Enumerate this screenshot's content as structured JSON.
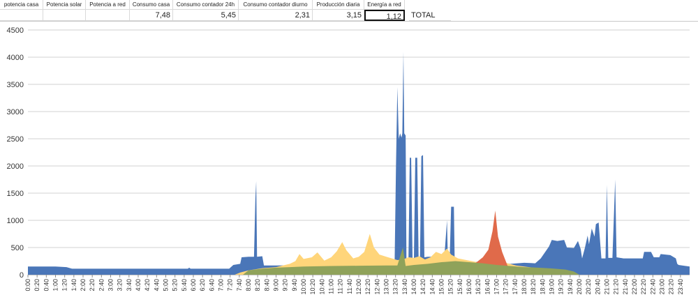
{
  "sheet": {
    "headers": [
      "potencia casa",
      "Potencia solar",
      "Potencia a red",
      "Consumo casa",
      "Consumo contador 24h",
      "Consumo contador diurno",
      "Producción diaria",
      "Energía a red"
    ],
    "values": [
      "",
      "",
      "",
      "7,48",
      "5,45",
      "2,31",
      "3,15",
      "1,12"
    ],
    "total_label": "TOTAL"
  },
  "colors": {
    "consumo": "#4a76b8",
    "solar": "#ffd57a",
    "red": "#e06a4a",
    "overlap": "#8fa25a"
  },
  "chart_data": {
    "type": "area",
    "ylim": [
      0,
      4500
    ],
    "yticks": [
      0,
      500,
      1000,
      1500,
      2000,
      2500,
      3000,
      3500,
      4000,
      4500
    ],
    "grid": true,
    "legend": "none",
    "xlabels": [
      "0:00",
      "0:20",
      "0:40",
      "1:00",
      "1:20",
      "1:40",
      "2:00",
      "2:20",
      "2:40",
      "3:00",
      "3:20",
      "3:40",
      "4:00",
      "4:20",
      "4:40",
      "5:00",
      "5:20",
      "5:40",
      "6:00",
      "6:20",
      "6:40",
      "7:00",
      "7:20",
      "7:40",
      "8:00",
      "8:20",
      "8:40",
      "9:00",
      "9:20",
      "9:40",
      "10:00",
      "10:20",
      "10:40",
      "11:00",
      "11:20",
      "11:40",
      "12:00",
      "12:20",
      "12:40",
      "13:00",
      "13:20",
      "13:40",
      "14:00",
      "14:20",
      "14:40",
      "15:00",
      "15:20",
      "15:40",
      "16:00",
      "16:20",
      "16:40",
      "17:00",
      "17:20",
      "17:40",
      "18:00",
      "18:20",
      "18:40",
      "19:00",
      "19:20",
      "19:40",
      "20:00",
      "20:20",
      "20:40",
      "21:00",
      "21:20",
      "21:40",
      "22:00",
      "22:20",
      "22:40",
      "23:00",
      "23:20",
      "23:40"
    ],
    "series": [
      {
        "key": "consumo",
        "points": [
          [
            0,
            150
          ],
          [
            1,
            150
          ],
          [
            1.4,
            140
          ],
          [
            1.6,
            110
          ],
          [
            5.8,
            110
          ],
          [
            5.85,
            130
          ],
          [
            5.9,
            110
          ],
          [
            7.3,
            110
          ],
          [
            7.45,
            180
          ],
          [
            7.7,
            200
          ],
          [
            7.75,
            320
          ],
          [
            8.0,
            330
          ],
          [
            8.2,
            330
          ],
          [
            8.25,
            1400
          ],
          [
            8.28,
            1720
          ],
          [
            8.31,
            330
          ],
          [
            8.5,
            340
          ],
          [
            8.56,
            170
          ],
          [
            9.0,
            170
          ],
          [
            12.0,
            180
          ],
          [
            13.0,
            180
          ],
          [
            13.3,
            200
          ],
          [
            13.35,
            2000
          ],
          [
            13.4,
            3450
          ],
          [
            13.45,
            2500
          ],
          [
            13.5,
            2600
          ],
          [
            13.55,
            2520
          ],
          [
            13.58,
            2600
          ],
          [
            13.62,
            4100
          ],
          [
            13.65,
            2600
          ],
          [
            13.7,
            2560
          ],
          [
            13.73,
            180
          ],
          [
            13.8,
            180
          ],
          [
            13.85,
            2150
          ],
          [
            13.9,
            2150
          ],
          [
            13.95,
            300
          ],
          [
            14.0,
            300
          ],
          [
            14.05,
            2150
          ],
          [
            14.12,
            2150
          ],
          [
            14.17,
            300
          ],
          [
            14.22,
            300
          ],
          [
            14.27,
            2180
          ],
          [
            14.33,
            2200
          ],
          [
            14.38,
            320
          ],
          [
            14.5,
            330
          ],
          [
            15.0,
            330
          ],
          [
            15.1,
            300
          ],
          [
            15.2,
            1000
          ],
          [
            15.23,
            300
          ],
          [
            15.3,
            330
          ],
          [
            15.35,
            1250
          ],
          [
            15.45,
            1250
          ],
          [
            15.48,
            200
          ],
          [
            15.8,
            250
          ],
          [
            16.0,
            220
          ],
          [
            16.5,
            250
          ],
          [
            17.0,
            230
          ],
          [
            17.5,
            200
          ],
          [
            18.0,
            220
          ],
          [
            18.4,
            210
          ],
          [
            18.6,
            300
          ],
          [
            18.9,
            520
          ],
          [
            19.0,
            640
          ],
          [
            19.2,
            620
          ],
          [
            19.45,
            640
          ],
          [
            19.55,
            500
          ],
          [
            19.8,
            490
          ],
          [
            19.95,
            620
          ],
          [
            20.05,
            470
          ],
          [
            20.1,
            300
          ],
          [
            20.2,
            490
          ],
          [
            20.3,
            720
          ],
          [
            20.35,
            560
          ],
          [
            20.45,
            850
          ],
          [
            20.55,
            700
          ],
          [
            20.6,
            930
          ],
          [
            20.7,
            960
          ],
          [
            20.8,
            300
          ],
          [
            20.95,
            300
          ],
          [
            21.0,
            1650
          ],
          [
            21.05,
            310
          ],
          [
            21.2,
            310
          ],
          [
            21.3,
            1750
          ],
          [
            21.35,
            320
          ],
          [
            21.6,
            300
          ],
          [
            22.3,
            300
          ],
          [
            22.35,
            420
          ],
          [
            22.6,
            420
          ],
          [
            22.7,
            320
          ],
          [
            22.9,
            320
          ],
          [
            22.95,
            380
          ],
          [
            23.3,
            360
          ],
          [
            23.5,
            300
          ],
          [
            23.55,
            200
          ],
          [
            23.6,
            180
          ],
          [
            24.0,
            150
          ]
        ]
      },
      {
        "key": "solar",
        "points": [
          [
            7.5,
            0
          ],
          [
            7.7,
            40
          ],
          [
            8.0,
            80
          ],
          [
            8.5,
            120
          ],
          [
            9.0,
            140
          ],
          [
            9.5,
            200
          ],
          [
            9.7,
            250
          ],
          [
            9.85,
            380
          ],
          [
            10.0,
            290
          ],
          [
            10.3,
            320
          ],
          [
            10.5,
            410
          ],
          [
            10.75,
            260
          ],
          [
            11.0,
            320
          ],
          [
            11.2,
            430
          ],
          [
            11.4,
            600
          ],
          [
            11.55,
            450
          ],
          [
            11.8,
            300
          ],
          [
            12.0,
            330
          ],
          [
            12.2,
            420
          ],
          [
            12.4,
            750
          ],
          [
            12.55,
            500
          ],
          [
            12.75,
            370
          ],
          [
            13.0,
            330
          ],
          [
            13.2,
            300
          ],
          [
            13.4,
            270
          ],
          [
            13.6,
            280
          ],
          [
            13.8,
            320
          ],
          [
            14.0,
            310
          ],
          [
            14.2,
            340
          ],
          [
            14.4,
            280
          ],
          [
            14.6,
            320
          ],
          [
            14.8,
            420
          ],
          [
            15.0,
            380
          ],
          [
            15.2,
            480
          ],
          [
            15.35,
            370
          ],
          [
            15.6,
            300
          ],
          [
            16.0,
            260
          ],
          [
            16.3,
            230
          ],
          [
            16.6,
            260
          ],
          [
            17.0,
            260
          ],
          [
            17.4,
            210
          ],
          [
            17.7,
            170
          ],
          [
            18.0,
            150
          ],
          [
            18.5,
            120
          ],
          [
            19.0,
            100
          ],
          [
            19.5,
            80
          ],
          [
            20.0,
            0
          ]
        ]
      },
      {
        "key": "red",
        "points": [
          [
            15.8,
            0
          ],
          [
            16.0,
            120
          ],
          [
            16.3,
            240
          ],
          [
            16.5,
            320
          ],
          [
            16.7,
            460
          ],
          [
            16.85,
            800
          ],
          [
            16.95,
            1180
          ],
          [
            17.05,
            700
          ],
          [
            17.2,
            420
          ],
          [
            17.4,
            160
          ],
          [
            17.6,
            0
          ]
        ]
      },
      {
        "key": "overlap",
        "points": [
          [
            7.8,
            0
          ],
          [
            8.0,
            80
          ],
          [
            8.5,
            110
          ],
          [
            9.0,
            130
          ],
          [
            9.5,
            140
          ],
          [
            10.0,
            150
          ],
          [
            11.0,
            160
          ],
          [
            12.0,
            165
          ],
          [
            13.0,
            170
          ],
          [
            13.4,
            170
          ],
          [
            13.6,
            500
          ],
          [
            13.7,
            160
          ],
          [
            14.0,
            180
          ],
          [
            14.5,
            200
          ],
          [
            15.0,
            230
          ],
          [
            15.5,
            250
          ],
          [
            16.0,
            230
          ],
          [
            16.5,
            210
          ],
          [
            17.0,
            180
          ],
          [
            17.5,
            160
          ],
          [
            18.0,
            140
          ],
          [
            18.5,
            130
          ],
          [
            19.0,
            115
          ],
          [
            19.5,
            95
          ],
          [
            19.8,
            60
          ],
          [
            20.0,
            0
          ]
        ]
      }
    ]
  }
}
